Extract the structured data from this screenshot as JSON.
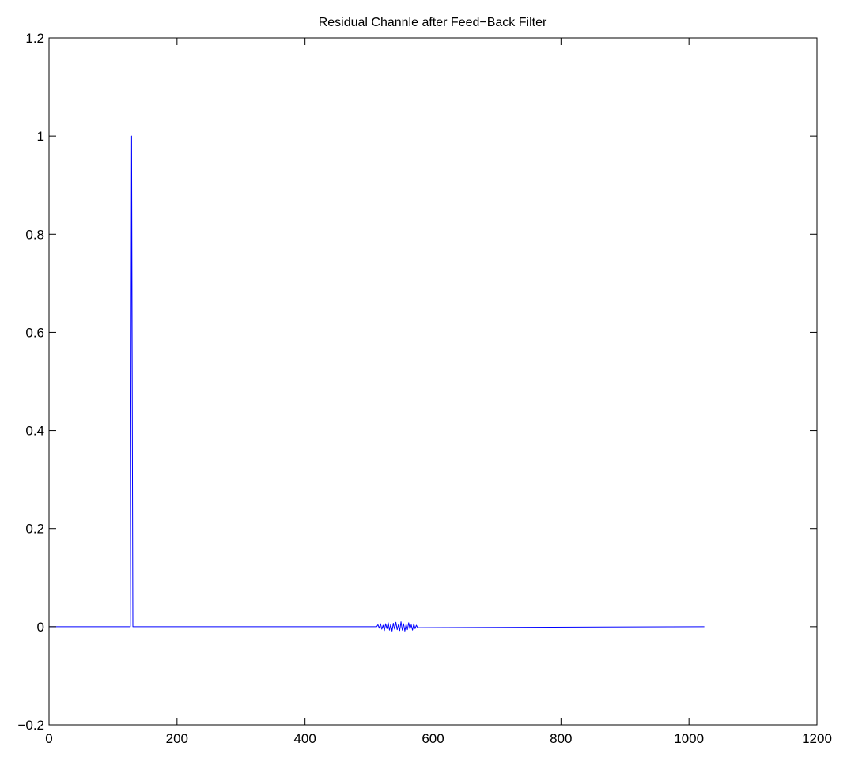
{
  "chart_data": {
    "type": "line",
    "title": "Residual Channle after Feed−Back Filter",
    "xlabel": "",
    "ylabel": "",
    "xlim": [
      0,
      1200
    ],
    "ylim": [
      -0.2,
      1.2
    ],
    "xticks": [
      0,
      200,
      400,
      600,
      800,
      1000,
      1200
    ],
    "yticks": [
      -0.2,
      0,
      0.2,
      0.4,
      0.6,
      0.8,
      1,
      1.2
    ],
    "xtick_labels": [
      "0",
      "200",
      "400",
      "600",
      "800",
      "1000",
      "1200"
    ],
    "ytick_labels": [
      "−0.2",
      "0",
      "0.2",
      "0.4",
      "0.6",
      "0.8",
      "1",
      "1.2"
    ],
    "grid": false,
    "series": [
      {
        "color": "#0000ff",
        "x": [
          1,
          127,
          128,
          129,
          130,
          131,
          512,
          514,
          516,
          518,
          520,
          522,
          524,
          526,
          528,
          530,
          532,
          534,
          536,
          538,
          540,
          542,
          544,
          546,
          548,
          550,
          552,
          554,
          556,
          558,
          560,
          562,
          564,
          566,
          568,
          570,
          572,
          574,
          576,
          1024
        ],
        "y": [
          0,
          0,
          0.5,
          1.0,
          0.5,
          0,
          0,
          0.004,
          -0.003,
          0.006,
          -0.005,
          0.003,
          -0.008,
          0.006,
          -0.004,
          0.008,
          -0.007,
          0.005,
          -0.009,
          0.007,
          -0.005,
          0.009,
          -0.006,
          0.004,
          -0.008,
          0.01,
          -0.007,
          0.006,
          -0.009,
          0.005,
          -0.006,
          0.008,
          -0.005,
          0.004,
          -0.007,
          0.006,
          -0.004,
          0.003,
          -0.002,
          0
        ]
      }
    ]
  }
}
